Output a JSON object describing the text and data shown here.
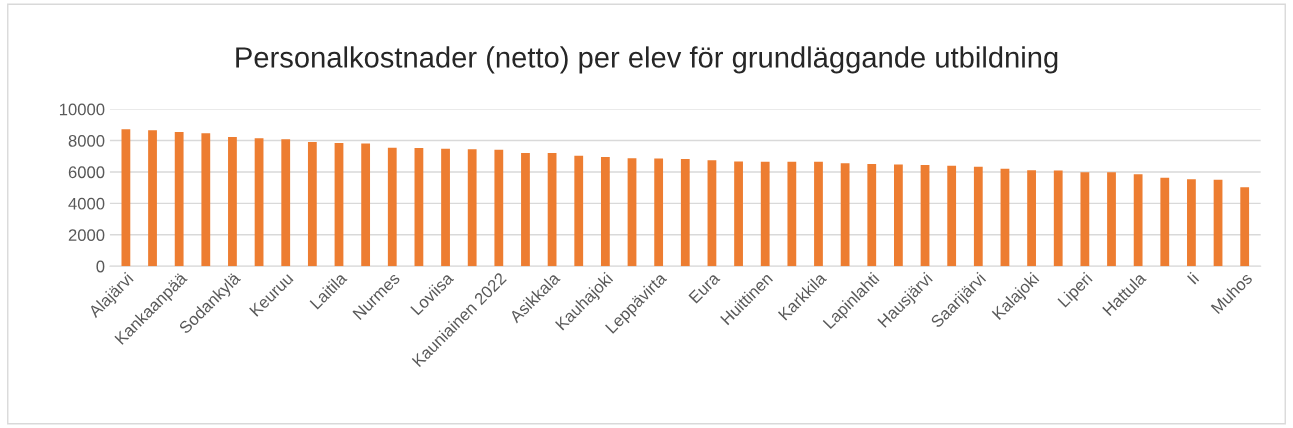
{
  "chart_data": {
    "type": "bar",
    "title": "Personalkostnader (netto) per elev för grundläggande utbildning",
    "categories": [
      "Alajärvi",
      null,
      "Kankaanpää",
      null,
      "Sodankylä",
      null,
      "Keuruu",
      null,
      "Laitila",
      null,
      "Nurmes",
      null,
      "Loviisa",
      null,
      "Kauniainen 2022",
      null,
      "Asikkala",
      null,
      "Kauhajoki",
      null,
      "Leppävirta",
      null,
      "Eura",
      null,
      "Huittinen",
      null,
      "Karkkila",
      null,
      "Lapinlahti",
      null,
      "Hausjärvi",
      null,
      "Saarijärvi",
      null,
      "Kalajoki",
      null,
      "Liperi",
      null,
      "Hattula",
      null,
      "Ii",
      null,
      "Muhos"
    ],
    "values": [
      8720,
      8650,
      8550,
      8460,
      8230,
      8140,
      8080,
      7910,
      7840,
      7820,
      7540,
      7520,
      7480,
      7440,
      7420,
      7200,
      7200,
      7030,
      6950,
      6880,
      6860,
      6820,
      6750,
      6670,
      6650,
      6650,
      6650,
      6560,
      6500,
      6480,
      6450,
      6390,
      6330,
      6200,
      6110,
      6090,
      5980,
      5980,
      5860,
      5640,
      5540,
      5510,
      5020
    ],
    "color": "#ed7d31",
    "ylim": [
      0,
      10000
    ],
    "yticks": [
      0,
      2000,
      4000,
      6000,
      8000,
      10000
    ],
    "grid": "y"
  }
}
